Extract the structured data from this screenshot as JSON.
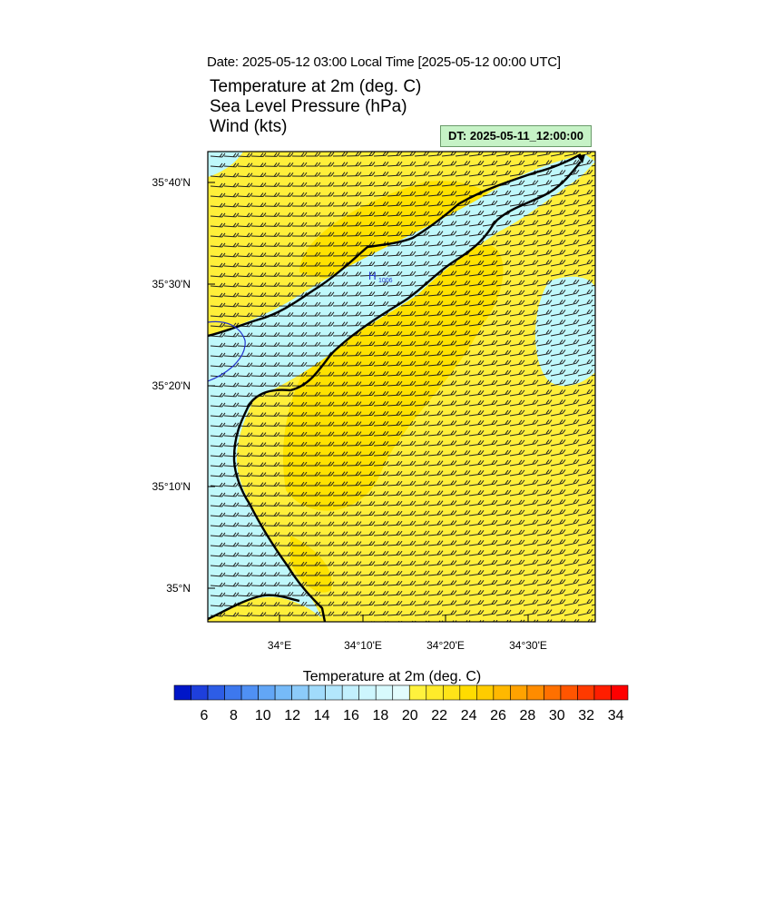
{
  "header": {
    "date_line": "Date: 2025-05-12  03:00 Local Time [2025-05-12  00:00 UTC]",
    "field1": "Temperature at 2m   (deg. C)",
    "field2": "Sea Level Pressure   (hPa)",
    "field3": "Wind   (kts)",
    "dt_label": "DT: 2025-05-11_12:00:00"
  },
  "map": {
    "lat_labels": [
      "35°40'N",
      "35°30'N",
      "35°20'N",
      "35°10'N",
      "35°N"
    ],
    "lon_labels": [
      "34°E",
      "34°10'E",
      "34°20'E",
      "34°30'E"
    ],
    "pressure_high_symbol": "H",
    "pressure_high_value": "1006",
    "colors": {
      "warm_yellow": "#ffef3a",
      "warmer_yellow": "#ffe600",
      "cool_cyan": "#bff8fb",
      "coast": "#000000",
      "isobar": "#2233cc"
    }
  },
  "colorbar": {
    "title": "Temperature at 2m  (deg. C)",
    "labels": [
      "6",
      "8",
      "10",
      "12",
      "14",
      "16",
      "18",
      "20",
      "22",
      "24",
      "26",
      "28",
      "30",
      "32",
      "34"
    ],
    "colors": [
      "#0016c8",
      "#1e3fdc",
      "#2d5de6",
      "#3d78ee",
      "#4f90f4",
      "#62a6f6",
      "#76baf8",
      "#8ccbfa",
      "#a1dbfb",
      "#b3e7fc",
      "#c2f0fd",
      "#cdf6fd",
      "#d8fafd",
      "#e2fcfd",
      "#fff23d",
      "#ffeb2a",
      "#ffe418",
      "#ffdc00",
      "#ffcc00",
      "#ffb800",
      "#ffa200",
      "#ff8c00",
      "#ff7000",
      "#ff5500",
      "#ff3a00",
      "#ff1e00",
      "#ff0000"
    ]
  }
}
